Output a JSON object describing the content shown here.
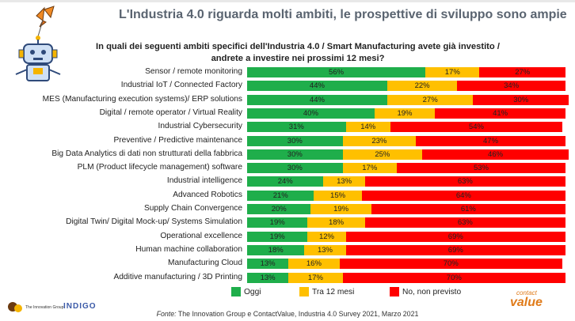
{
  "slide": {
    "title": "L'Industria 4.0 riguarda molti ambiti, le prospettive di sviluppo sono ampie",
    "question_line1": "In quali dei seguenti ambiti specifici dell'Industria 4.0 / Smart Manufacturing avete già investito /",
    "question_line2": "andrete a investire nei prossimi 12 mesi?",
    "source_prefix": "Fonte:",
    "source_text": " The Innovation Group e ContactValue, Industria 4.0 Survey 2021, Marzo 2021",
    "logos": {
      "tig": "The Innovation Group",
      "indigo": "INDIGO",
      "contact_small": "contact",
      "contact_big": "value"
    }
  },
  "colors": {
    "oggi": "#1fae4b",
    "tra12": "#ffc000",
    "no": "#ff0000"
  },
  "chart_data": {
    "type": "bar",
    "orientation": "horizontal",
    "stacked": true,
    "categories": [
      "Sensor / remote monitoring",
      "Industrial IoT / Connected Factory",
      "MES (Manufacturing execution systems)/ ERP solutions",
      "Digital / remote operator / Virtual Reality",
      "Industrial Cybersecurity",
      "Preventive / Predictive maintenance",
      "Big Data Analytics di dati non strutturati della fabbrica",
      "PLM (Product lifecycle management) software",
      "Industrial intelligence",
      "Advanced Robotics",
      "Supply Chain Convergence",
      "Digital Twin/ Digital Mock-up/ Systems Simulation",
      "Operational excellence",
      "Human machine collaboration",
      "Manufacturing Cloud",
      "Additive manufacturing / 3D Printing"
    ],
    "series": [
      {
        "name": "Oggi",
        "values": [
          56,
          44,
          44,
          40,
          31,
          30,
          30,
          30,
          24,
          21,
          20,
          19,
          19,
          18,
          13,
          13
        ]
      },
      {
        "name": "Tra 12 mesi",
        "values": [
          17,
          22,
          27,
          19,
          14,
          23,
          25,
          17,
          13,
          15,
          19,
          18,
          12,
          13,
          16,
          17
        ]
      },
      {
        "name": "No, non previsto",
        "values": [
          27,
          34,
          30,
          41,
          54,
          47,
          46,
          53,
          63,
          64,
          61,
          63,
          69,
          69,
          70,
          70
        ]
      }
    ],
    "unit": "%",
    "xlim": [
      0,
      100
    ],
    "legend_position": "bottom"
  }
}
